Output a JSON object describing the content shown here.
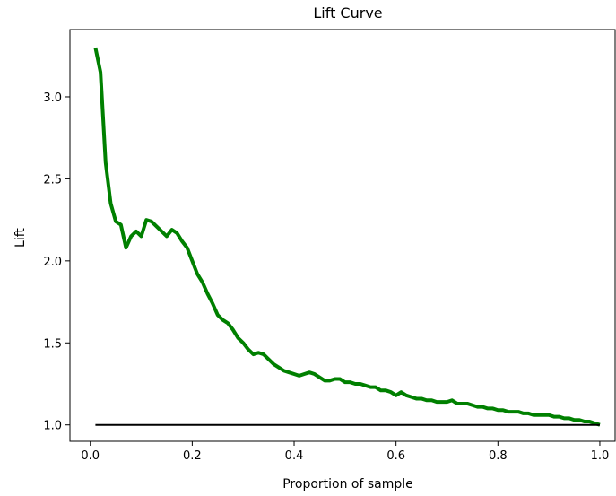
{
  "chart_data": {
    "type": "line",
    "title": "Lift Curve",
    "xlabel": "Proportion of sample",
    "ylabel": "Lift",
    "xlim": [
      -0.04,
      1.03
    ],
    "ylim": [
      0.9,
      3.41
    ],
    "xticks": [
      0.0,
      0.2,
      0.4,
      0.6,
      0.8,
      1.0
    ],
    "xtick_labels": [
      "0.0",
      "0.2",
      "0.4",
      "0.6",
      "0.8",
      "1.0"
    ],
    "yticks": [
      1.0,
      1.5,
      2.0,
      2.5,
      3.0
    ],
    "ytick_labels": [
      "1.0",
      "1.5",
      "2.0",
      "2.5",
      "3.0"
    ],
    "grid": false,
    "colors": {
      "lift": "#008000",
      "baseline": "#000000"
    },
    "series": [
      {
        "role": "lift",
        "x": [
          0.01,
          0.02,
          0.03,
          0.04,
          0.05,
          0.06,
          0.07,
          0.08,
          0.09,
          0.1,
          0.11,
          0.12,
          0.13,
          0.14,
          0.15,
          0.16,
          0.17,
          0.18,
          0.19,
          0.2,
          0.21,
          0.22,
          0.23,
          0.24,
          0.25,
          0.26,
          0.27,
          0.28,
          0.29,
          0.3,
          0.31,
          0.32,
          0.33,
          0.34,
          0.35,
          0.36,
          0.37,
          0.38,
          0.39,
          0.4,
          0.41,
          0.42,
          0.43,
          0.44,
          0.45,
          0.46,
          0.47,
          0.48,
          0.49,
          0.5,
          0.51,
          0.52,
          0.53,
          0.54,
          0.55,
          0.56,
          0.57,
          0.58,
          0.59,
          0.6,
          0.61,
          0.62,
          0.63,
          0.64,
          0.65,
          0.66,
          0.67,
          0.68,
          0.69,
          0.7,
          0.71,
          0.72,
          0.73,
          0.74,
          0.75,
          0.76,
          0.77,
          0.78,
          0.79,
          0.8,
          0.81,
          0.82,
          0.83,
          0.84,
          0.85,
          0.86,
          0.87,
          0.88,
          0.89,
          0.9,
          0.91,
          0.92,
          0.93,
          0.94,
          0.95,
          0.96,
          0.97,
          0.98,
          0.99,
          1.0
        ],
        "y": [
          3.3,
          3.15,
          2.6,
          2.35,
          2.24,
          2.22,
          2.08,
          2.15,
          2.18,
          2.15,
          2.25,
          2.24,
          2.21,
          2.18,
          2.15,
          2.19,
          2.17,
          2.12,
          2.08,
          2.0,
          1.92,
          1.87,
          1.8,
          1.74,
          1.67,
          1.64,
          1.62,
          1.58,
          1.53,
          1.5,
          1.46,
          1.43,
          1.44,
          1.43,
          1.4,
          1.37,
          1.35,
          1.33,
          1.32,
          1.31,
          1.3,
          1.31,
          1.32,
          1.31,
          1.29,
          1.27,
          1.27,
          1.28,
          1.28,
          1.26,
          1.26,
          1.25,
          1.25,
          1.24,
          1.23,
          1.23,
          1.21,
          1.21,
          1.2,
          1.18,
          1.2,
          1.18,
          1.17,
          1.16,
          1.16,
          1.15,
          1.15,
          1.14,
          1.14,
          1.14,
          1.15,
          1.13,
          1.13,
          1.13,
          1.12,
          1.11,
          1.11,
          1.1,
          1.1,
          1.09,
          1.09,
          1.08,
          1.08,
          1.08,
          1.07,
          1.07,
          1.06,
          1.06,
          1.06,
          1.06,
          1.05,
          1.05,
          1.04,
          1.04,
          1.03,
          1.03,
          1.02,
          1.02,
          1.01,
          1.0
        ]
      },
      {
        "role": "baseline",
        "x": [
          0.01,
          1.0
        ],
        "y": [
          1.0,
          1.0
        ]
      }
    ]
  }
}
